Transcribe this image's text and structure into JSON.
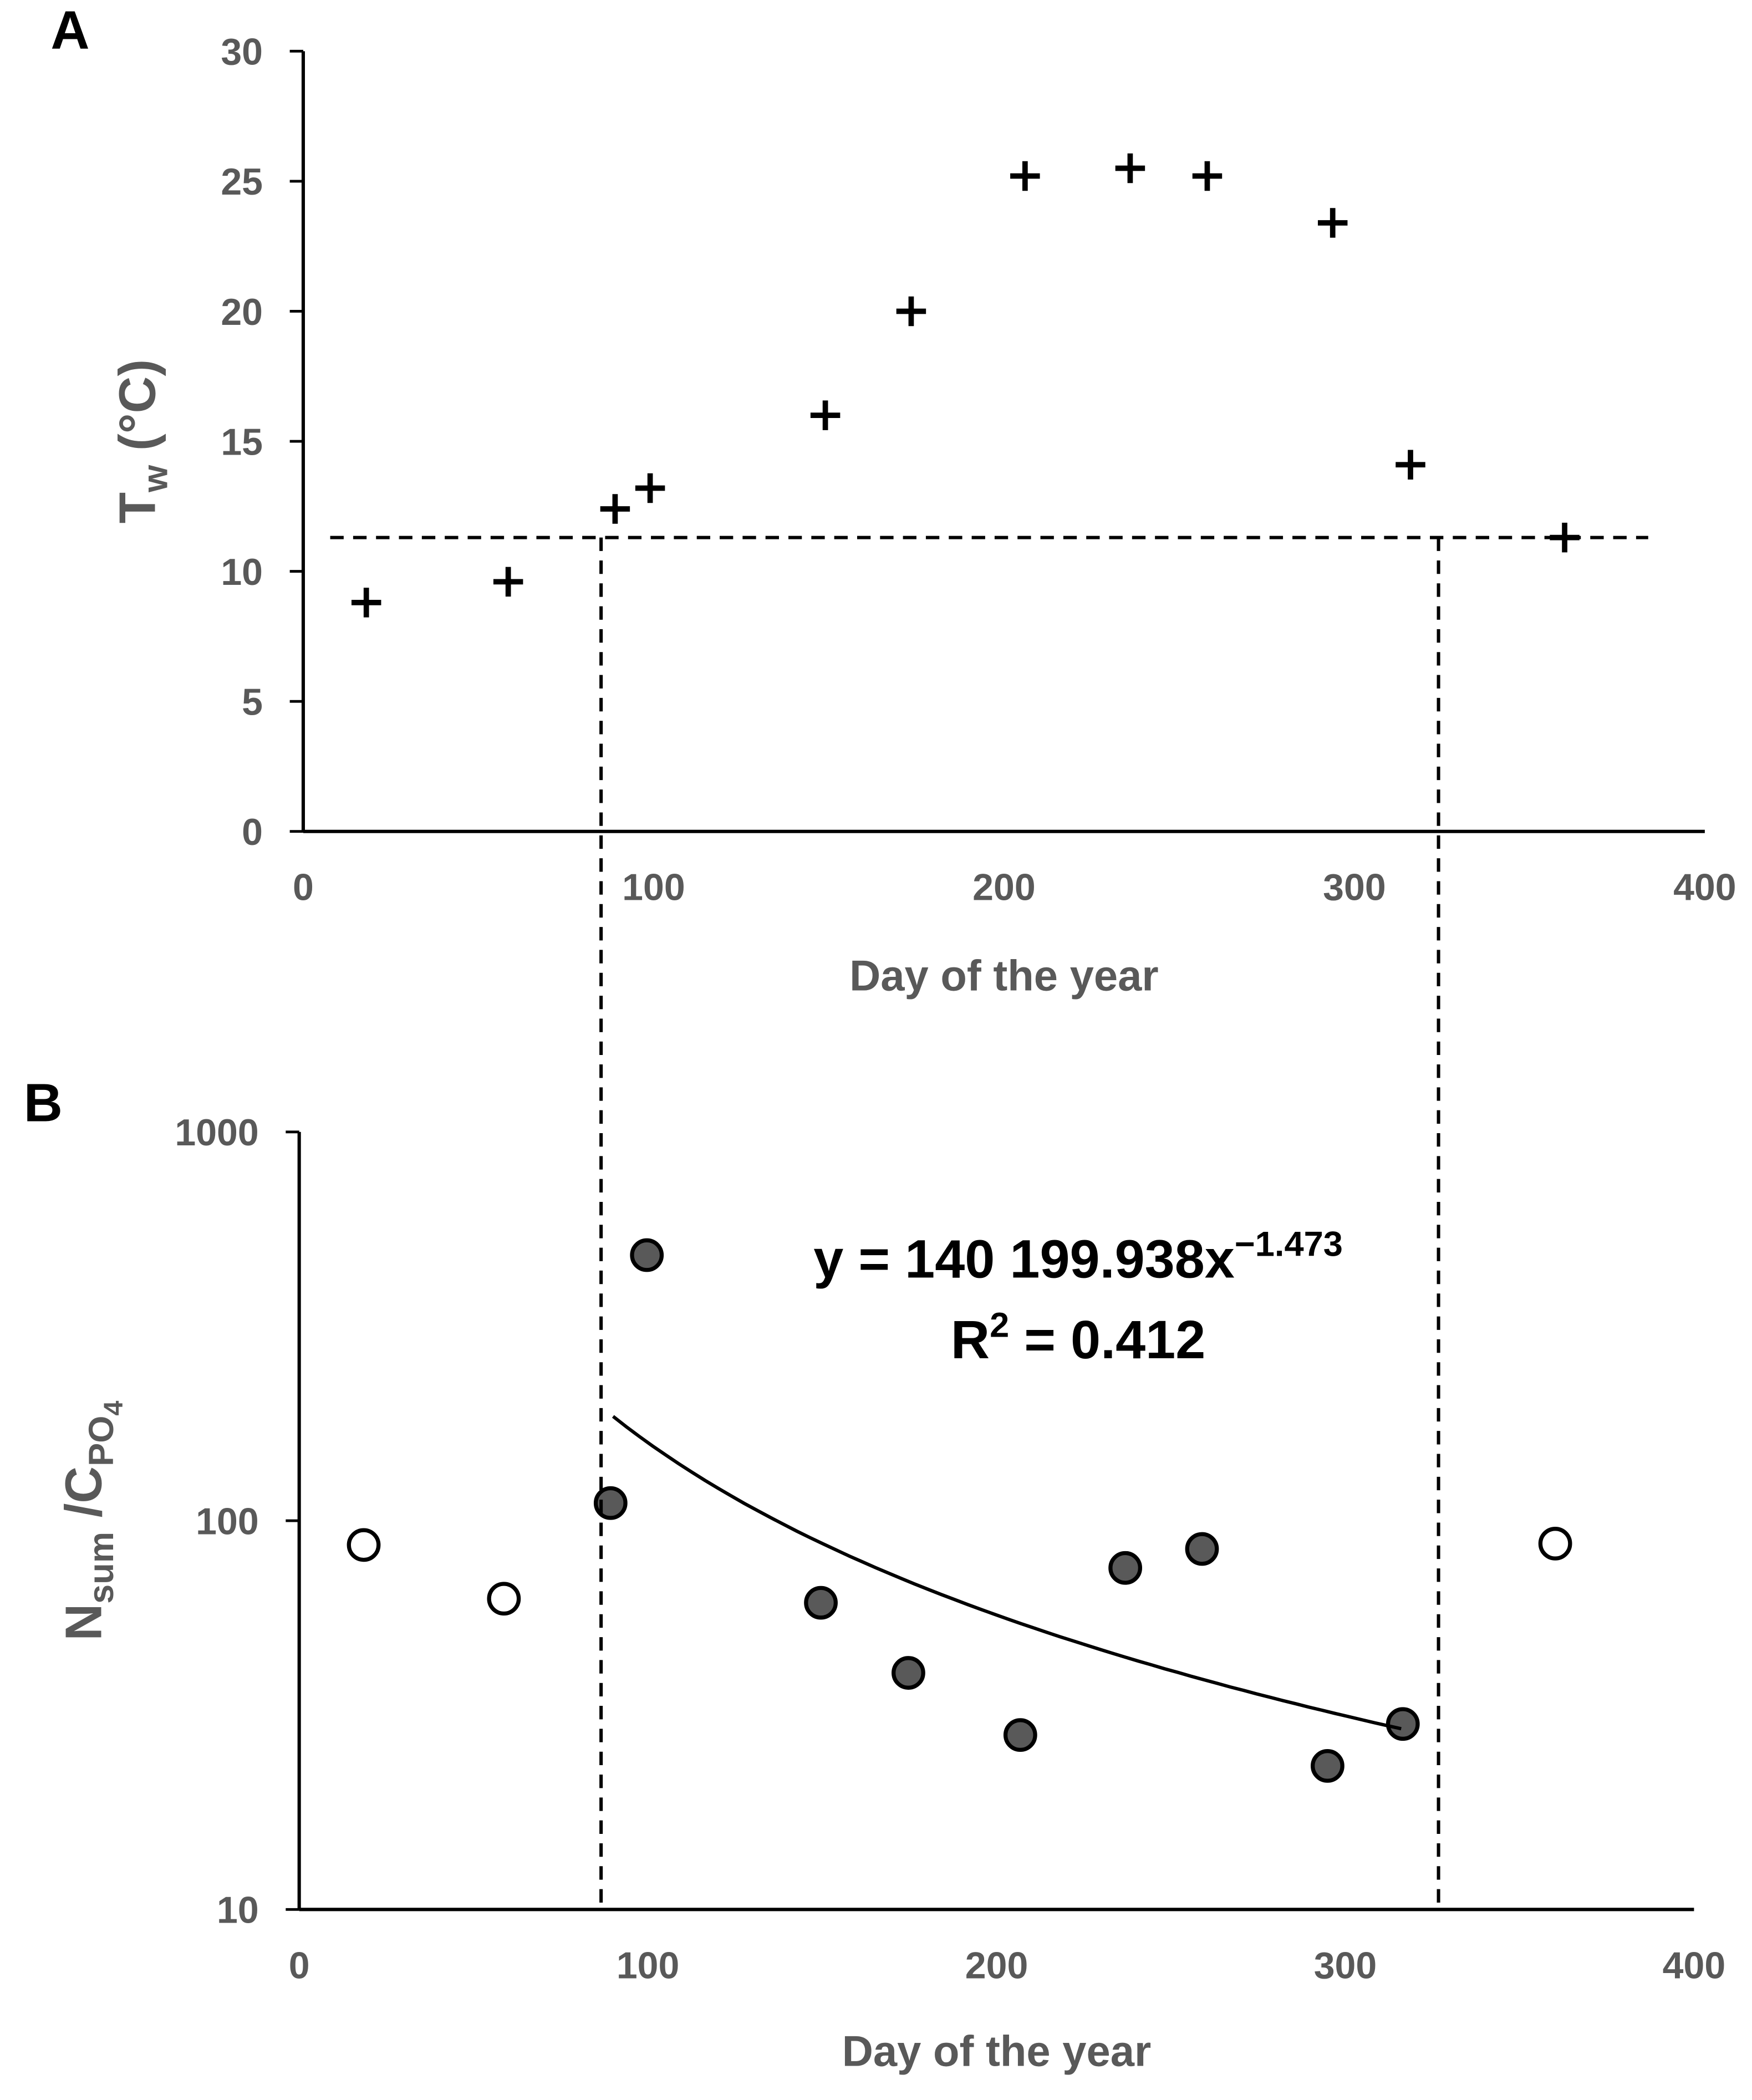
{
  "chart_data": [
    {
      "type": "scatter",
      "panel_label": "A",
      "x_label": "Day of the year",
      "y_label": [
        {
          "text": "T",
          "level": 0
        },
        {
          "text": "w",
          "level": 1
        },
        {
          "text": " (°C)",
          "level": 0
        }
      ],
      "xlim": [
        0,
        400
      ],
      "xticks": [
        0,
        100,
        200,
        300,
        400
      ],
      "ylim": [
        0,
        30
      ],
      "yticks": [
        0,
        5,
        10,
        15,
        20,
        25,
        30
      ],
      "reference_y": 11.3,
      "reference_x": [
        85,
        324
      ],
      "series": [
        {
          "marker": "plus",
          "color": "#000000",
          "x": [
            18,
            58.5,
            89,
            99,
            149,
            173.5,
            206,
            236,
            258,
            293.8,
            316,
            360
          ],
          "values": [
            8.8,
            9.6,
            12.4,
            13.2,
            16.0,
            20.0,
            25.2,
            25.5,
            25.2,
            23.4,
            14.1,
            11.3
          ]
        }
      ]
    },
    {
      "type": "scatter",
      "panel_label": "B",
      "x_label": "Day of the year",
      "y_label": [
        {
          "text": "N",
          "level": 0
        },
        {
          "text": "sum",
          "level": 1
        },
        {
          "text": " /C",
          "level": 0
        },
        {
          "text": "PO",
          "level": 1
        },
        {
          "text": "4",
          "level": 2
        }
      ],
      "xlim": [
        0,
        400
      ],
      "xticks": [
        0,
        100,
        200,
        300,
        400
      ],
      "ylim": [
        10,
        1000
      ],
      "yticks": [
        10,
        100,
        1000
      ],
      "log_y": true,
      "series": [
        {
          "marker": "circle",
          "color": "#ffffff",
          "x": [
            18.5,
            58.7,
            360.2
          ],
          "values": [
            86.6,
            63,
            87.3
          ]
        },
        {
          "marker": "circle",
          "color": "#595959",
          "x": [
            89.3,
            99.7,
            149.6,
            174.7,
            206.8,
            236.9,
            258.9,
            294.9,
            316.5
          ],
          "values": [
            111,
            482,
            61.5,
            40.6,
            28.1,
            75.6,
            84.6,
            23.4,
            30
          ]
        }
      ],
      "fit": {
        "x_range": [
          90,
          316
        ],
        "equation": [
          "y = ",
          "x"
        ],
        "coefficient": {
          "value": 140199.938,
          "label": "140 199.938"
        },
        "exponent": {
          "value": -1.473,
          "label": "−1.473"
        },
        "r2_text": [
          "R",
          "2",
          " = "
        ],
        "r2": 0.412
      }
    }
  ]
}
